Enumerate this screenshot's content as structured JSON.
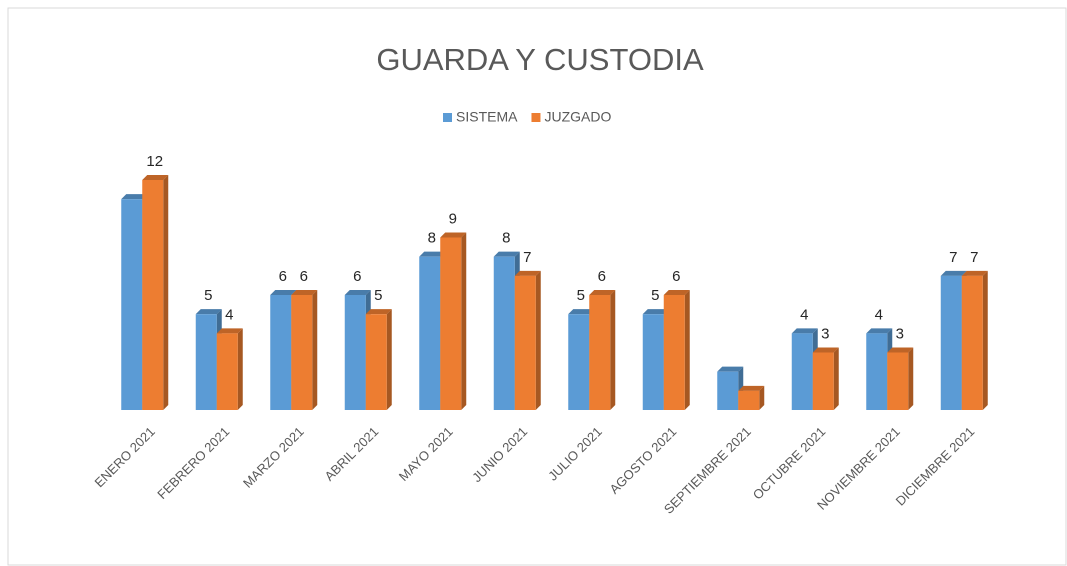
{
  "chart_data": {
    "type": "bar",
    "title": "GUARDA Y CUSTODIA",
    "categories": [
      "ENERO 2021",
      "FEBRERO 2021",
      "MARZO 2021",
      "ABRIL 2021",
      "MAYO 2021",
      "JUNIO 2021",
      "JULIO 2021",
      "AGOSTO 2021",
      "SEPTIEMBRE 2021",
      "OCTUBRE 2021",
      "NOVIEMBRE 2021",
      "DICIEMBRE 2021"
    ],
    "series": [
      {
        "name": "SISTEMA",
        "color": "#5b9bd5",
        "values": [
          11,
          5,
          6,
          6,
          8,
          8,
          5,
          5,
          2,
          4,
          4,
          7
        ],
        "value_labels": [
          null,
          5,
          6,
          6,
          8,
          8,
          5,
          5,
          null,
          4,
          4,
          7
        ]
      },
      {
        "name": "JUZGADO",
        "color": "#ed7d31",
        "values": [
          12,
          4,
          6,
          5,
          9,
          7,
          6,
          6,
          1,
          3,
          3,
          7
        ],
        "value_labels": [
          12,
          4,
          6,
          5,
          9,
          7,
          6,
          6,
          null,
          3,
          3,
          7
        ]
      }
    ],
    "legend": "top"
  }
}
